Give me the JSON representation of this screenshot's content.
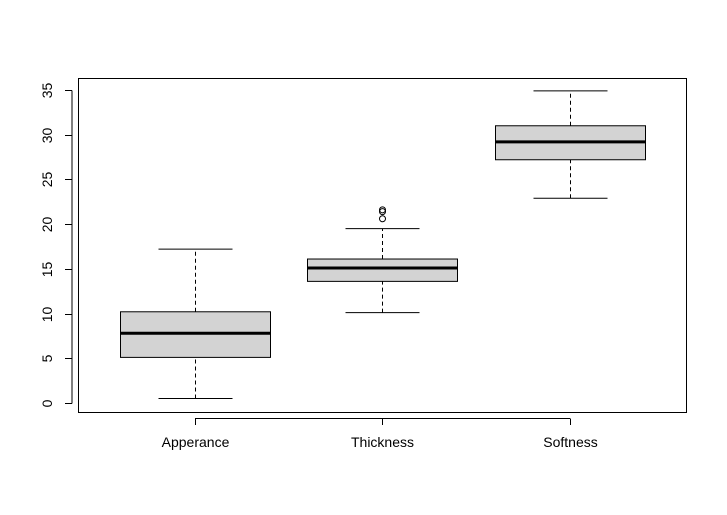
{
  "chart_data": {
    "type": "boxplot",
    "title": "",
    "xlabel": "",
    "ylabel": "",
    "ylim": [
      -1,
      36
    ],
    "yticks": [
      0,
      5,
      10,
      15,
      20,
      25,
      30,
      35
    ],
    "categories": [
      "Apperance",
      "Thickness",
      "Softness"
    ],
    "series": [
      {
        "name": "Apperance",
        "whisker_low": 0.5,
        "q1": 5.1,
        "median": 7.8,
        "q3": 10.2,
        "whisker_high": 17.2,
        "outliers": []
      },
      {
        "name": "Thickness",
        "whisker_low": 10.1,
        "q1": 13.6,
        "median": 15.1,
        "q3": 16.1,
        "whisker_high": 19.5,
        "outliers": [
          21.6,
          21.4,
          20.6
        ]
      },
      {
        "name": "Softness",
        "whisker_low": 22.9,
        "q1": 27.2,
        "median": 29.2,
        "q3": 31.0,
        "whisker_high": 34.9,
        "outliers": []
      }
    ],
    "box_fill": "#d3d3d3",
    "grid": false
  }
}
